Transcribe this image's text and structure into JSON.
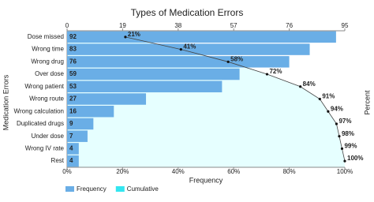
{
  "chart_data": {
    "type": "pareto",
    "title": "Types of Medication Errors",
    "y_label": "Medication Errors",
    "x_label": "Frequency",
    "y2_label": "Percent",
    "categories": [
      "Dose missed",
      "Wrong time",
      "Wrong drug",
      "Over dose",
      "Wrong patient",
      "Wrong route",
      "Wrong calculation",
      "Duplicated drugs",
      "Under dose",
      "Wrong IV rate",
      "Rest"
    ],
    "series": [
      {
        "name": "Frequency",
        "color": "#6aaee6",
        "values": [
          92,
          83,
          76,
          59,
          53,
          27,
          16,
          9,
          7,
          4,
          4
        ]
      },
      {
        "name": "Cumulative",
        "color": "#33e6f0",
        "axis": "x2",
        "values": [
          21,
          41,
          58,
          72,
          84,
          91,
          94,
          97,
          98,
          99,
          100
        ],
        "value_labels": [
          "21%",
          "41%",
          "58%",
          "72%",
          "84%",
          "91%",
          "94%",
          "97%",
          "98%",
          "99%",
          "100%"
        ]
      }
    ],
    "xlim": [
      0,
      95
    ],
    "xticks": [
      0,
      19,
      38,
      57,
      76,
      95
    ],
    "x2lim": [
      0,
      100
    ],
    "x2ticks": [
      {
        "value": 0,
        "label": "0%"
      },
      {
        "value": 20,
        "label": "20%"
      },
      {
        "value": 40,
        "label": "40%"
      },
      {
        "value": 60,
        "label": "60%"
      },
      {
        "value": 80,
        "label": "80%"
      },
      {
        "value": 100,
        "label": "100%"
      }
    ],
    "legend": "bottom-left"
  }
}
